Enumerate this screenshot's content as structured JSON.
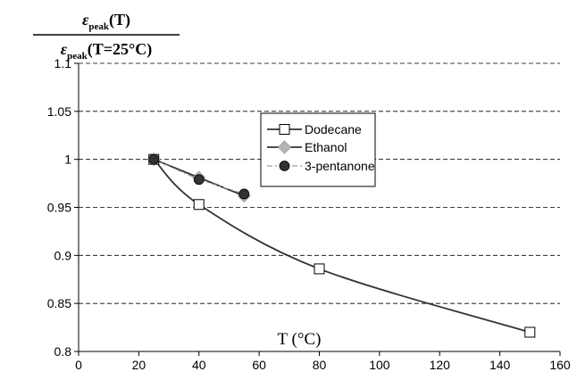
{
  "chart_data": {
    "type": "line",
    "ylabel": {
      "numerator": {
        "symbol": "ε",
        "subscript": "peak",
        "argument": "(T)"
      },
      "denominator": {
        "symbol": "ε",
        "subscript": "peak",
        "argument": "(T=25°C)"
      }
    },
    "xlabel": "T (°C)",
    "xlim": [
      0,
      160
    ],
    "ylim": [
      0.8,
      1.1
    ],
    "x_ticks": [
      "0",
      "20",
      "40",
      "60",
      "80",
      "100",
      "120",
      "140",
      "160"
    ],
    "y_ticks": [
      "0.8",
      "0.85",
      "0.9",
      "0.95",
      "1",
      "1.05",
      "1.1"
    ],
    "x_tick_values": [
      0,
      20,
      40,
      60,
      80,
      100,
      120,
      140,
      160
    ],
    "y_tick_values": [
      0.8,
      0.85,
      0.9,
      0.95,
      1.0,
      1.05,
      1.1
    ],
    "grid": "horizontal-dashed",
    "legend_position": "upper-center",
    "series": [
      {
        "name": "Dodecane",
        "x": [
          25,
          40,
          80,
          150
        ],
        "y": [
          1.0,
          0.953,
          0.886,
          0.82
        ],
        "marker": "square-open",
        "line_style": "solid",
        "color": "#333333",
        "marker_fill": "#ffffff"
      },
      {
        "name": "Ethanol",
        "x": [
          25,
          40,
          55
        ],
        "y": [
          1.0,
          0.981,
          0.962
        ],
        "marker": "diamond",
        "line_style": "solid",
        "color": "#333333",
        "marker_fill": "#b4b4b4"
      },
      {
        "name": "3-pentanone",
        "x": [
          25,
          40,
          55
        ],
        "y": [
          1.0,
          0.979,
          0.964
        ],
        "marker": "circle-filled",
        "line_style": "dashdot",
        "color": "#9a9a9a",
        "marker_fill": "#333333"
      }
    ]
  }
}
